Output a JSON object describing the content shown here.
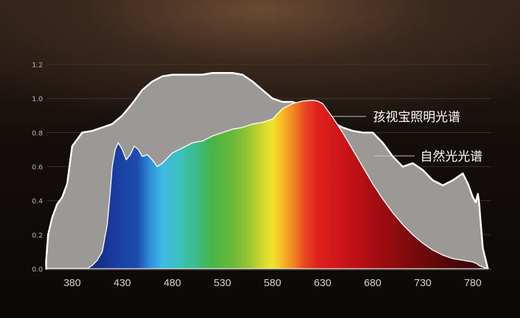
{
  "chart_data": {
    "type": "area",
    "title": "",
    "xlabel": "",
    "ylabel": "",
    "xlim": [
      355,
      798
    ],
    "ylim": [
      0,
      1.2
    ],
    "grid": true,
    "x_ticks": [
      "380",
      "430",
      "480",
      "530",
      "580",
      "630",
      "680",
      "730",
      "780"
    ],
    "x_tick_values": [
      380,
      430,
      480,
      530,
      580,
      630,
      680,
      730,
      780
    ],
    "y_ticks": [
      "0.0",
      "0.2",
      "0.4",
      "0.6",
      "0.8",
      "1.0",
      "1.2"
    ],
    "y_tick_values": [
      0,
      0.2,
      0.4,
      0.6,
      0.8,
      1.0,
      1.2
    ],
    "series": [
      {
        "name": "孩视宝照明光谱",
        "color": "#ffffff",
        "fill": "spectrum",
        "x": [
          380,
          385,
          390,
          395,
          400,
          405,
          410,
          415,
          418,
          420,
          423,
          426,
          430,
          434,
          438,
          442,
          446,
          450,
          455,
          460,
          465,
          470,
          480,
          490,
          500,
          510,
          520,
          530,
          540,
          550,
          560,
          570,
          580,
          585,
          590,
          600,
          610,
          620,
          625,
          630,
          635,
          640,
          650,
          660,
          670,
          680,
          690,
          700,
          710,
          720,
          730,
          740,
          750,
          760,
          770,
          780,
          784,
          786,
          790,
          795
        ],
        "y": [
          0.0,
          0.0,
          0.0,
          0.0,
          0.02,
          0.05,
          0.1,
          0.26,
          0.45,
          0.6,
          0.7,
          0.74,
          0.7,
          0.64,
          0.67,
          0.72,
          0.7,
          0.66,
          0.67,
          0.64,
          0.6,
          0.62,
          0.68,
          0.71,
          0.74,
          0.75,
          0.78,
          0.8,
          0.82,
          0.83,
          0.85,
          0.86,
          0.88,
          0.91,
          0.94,
          0.97,
          0.985,
          0.99,
          0.985,
          0.97,
          0.93,
          0.89,
          0.8,
          0.7,
          0.6,
          0.5,
          0.41,
          0.33,
          0.26,
          0.2,
          0.15,
          0.11,
          0.08,
          0.06,
          0.05,
          0.04,
          0.03,
          0.02,
          0.01,
          0.0
        ]
      },
      {
        "name": "自然光光谱",
        "color": "#ffffff",
        "fill": "#9c9895",
        "x": [
          354,
          356,
          360,
          365,
          370,
          375,
          380,
          390,
          400,
          410,
          420,
          430,
          440,
          450,
          460,
          470,
          480,
          490,
          500,
          510,
          520,
          530,
          540,
          550,
          560,
          570,
          580,
          590,
          600,
          610,
          620,
          630,
          640,
          650,
          660,
          670,
          680,
          690,
          700,
          710,
          720,
          730,
          740,
          750,
          760,
          770,
          775,
          780,
          783,
          785,
          786,
          790,
          795
        ],
        "y": [
          0.05,
          0.2,
          0.3,
          0.38,
          0.42,
          0.5,
          0.72,
          0.8,
          0.81,
          0.83,
          0.85,
          0.9,
          0.97,
          1.05,
          1.1,
          1.13,
          1.14,
          1.14,
          1.14,
          1.14,
          1.15,
          1.15,
          1.15,
          1.14,
          1.1,
          1.05,
          1.0,
          0.98,
          0.98,
          0.96,
          0.94,
          0.91,
          0.86,
          0.83,
          0.81,
          0.8,
          0.8,
          0.74,
          0.66,
          0.6,
          0.62,
          0.58,
          0.52,
          0.49,
          0.52,
          0.56,
          0.5,
          0.42,
          0.39,
          0.44,
          0.4,
          0.12,
          0.0
        ]
      }
    ]
  },
  "colors": {
    "natural_fill": "#9c9895",
    "outline": "#ffffff",
    "grid": "#4a3a30"
  }
}
